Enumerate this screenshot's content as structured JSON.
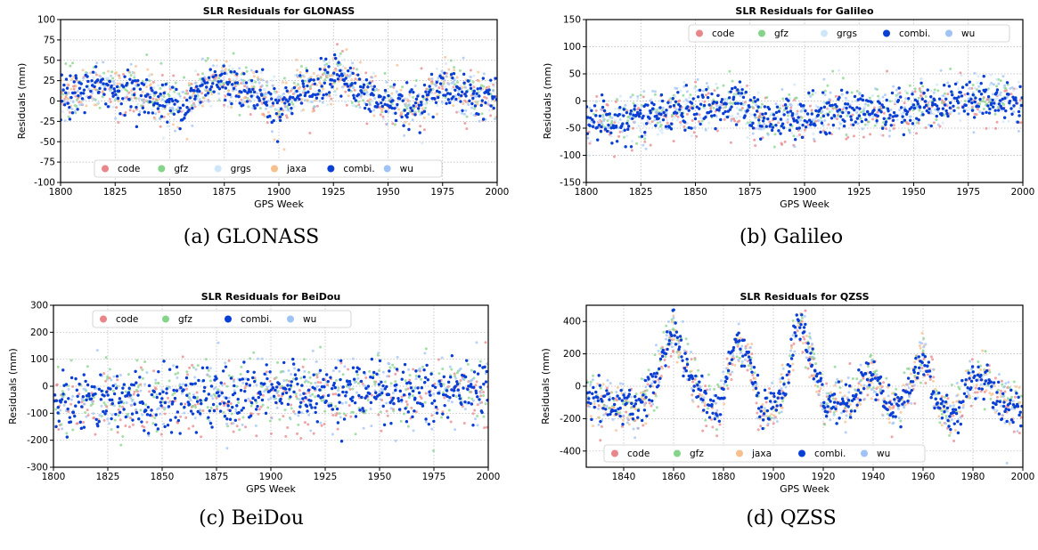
{
  "x_label": "GPS Week",
  "y_label": "Residuals (mm)",
  "colors": {
    "code": "#e8868a",
    "gfz": "#86d48b",
    "grgs": "#cfe6fa",
    "jaxa": "#f7bf8e",
    "combi.": "#0a3fd6",
    "wu": "#9fc3f5"
  },
  "chart_data": [
    {
      "type": "scatter",
      "title": "SLR Residuals for GLONASS",
      "caption": "(a) GLONASS",
      "xlim": [
        1800,
        2000
      ],
      "ylim": [
        -100,
        100
      ],
      "xticks": [
        1800,
        1825,
        1850,
        1875,
        1900,
        1925,
        1950,
        1975,
        2000
      ],
      "yticks": [
        -100,
        -75,
        -50,
        -25,
        0,
        25,
        50,
        75,
        100
      ],
      "legend_location": "bottom",
      "grid": true,
      "series": [
        {
          "name": "code"
        },
        {
          "name": "gfz"
        },
        {
          "name": "grgs"
        },
        {
          "name": "jaxa"
        },
        {
          "name": "combi."
        },
        {
          "name": "wu"
        }
      ],
      "trend": [
        [
          1800,
          0
        ],
        [
          1812,
          18
        ],
        [
          1825,
          15
        ],
        [
          1840,
          5
        ],
        [
          1850,
          -5
        ],
        [
          1860,
          0
        ],
        [
          1870,
          25
        ],
        [
          1880,
          20
        ],
        [
          1890,
          10
        ],
        [
          1900,
          -10
        ],
        [
          1910,
          15
        ],
        [
          1920,
          20
        ],
        [
          1928,
          35
        ],
        [
          1935,
          15
        ],
        [
          1945,
          0
        ],
        [
          1960,
          -10
        ],
        [
          1965,
          -5
        ],
        [
          1975,
          20
        ],
        [
          1985,
          10
        ],
        [
          2000,
          5
        ]
      ],
      "spread": 12
    },
    {
      "type": "scatter",
      "title": "SLR Residuals for Galileo",
      "caption": "(b) Galileo",
      "xlim": [
        1800,
        2000
      ],
      "ylim": [
        -150,
        150
      ],
      "xticks": [
        1800,
        1825,
        1850,
        1875,
        1900,
        1925,
        1950,
        1975,
        2000
      ],
      "yticks": [
        -150,
        -100,
        -50,
        0,
        50,
        100,
        150
      ],
      "legend_location": "top",
      "grid": true,
      "series": [
        {
          "name": "code"
        },
        {
          "name": "gfz"
        },
        {
          "name": "grgs"
        },
        {
          "name": "combi."
        },
        {
          "name": "wu"
        }
      ],
      "trend": [
        [
          1800,
          -30
        ],
        [
          1820,
          -35
        ],
        [
          1840,
          -20
        ],
        [
          1860,
          -10
        ],
        [
          1870,
          -5
        ],
        [
          1880,
          -35
        ],
        [
          1890,
          -30
        ],
        [
          1900,
          -30
        ],
        [
          1920,
          -15
        ],
        [
          1940,
          -20
        ],
        [
          1960,
          -5
        ],
        [
          1970,
          5
        ],
        [
          1985,
          0
        ],
        [
          2000,
          0
        ]
      ],
      "spread": 18
    },
    {
      "type": "scatter",
      "title": "SLR Residuals for BeiDou",
      "caption": "(c) BeiDou",
      "xlim": [
        1800,
        2000
      ],
      "ylim": [
        -300,
        300
      ],
      "xticks": [
        1800,
        1825,
        1850,
        1875,
        1900,
        1925,
        1950,
        1975,
        2000
      ],
      "yticks": [
        -300,
        -200,
        -100,
        0,
        100,
        200,
        300
      ],
      "legend_location": "top",
      "grid": true,
      "series": [
        {
          "name": "code"
        },
        {
          "name": "gfz"
        },
        {
          "name": "combi."
        },
        {
          "name": "wu"
        }
      ],
      "trend": [
        [
          1800,
          -30
        ],
        [
          1820,
          -40
        ],
        [
          1840,
          -60
        ],
        [
          1860,
          -30
        ],
        [
          1880,
          -50
        ],
        [
          1900,
          -20
        ],
        [
          1920,
          -40
        ],
        [
          1940,
          -30
        ],
        [
          1960,
          -10
        ],
        [
          1980,
          -20
        ],
        [
          2000,
          -10
        ]
      ],
      "spread": 55
    },
    {
      "type": "scatter",
      "title": "SLR Residuals for QZSS",
      "caption": "(d) QZSS",
      "xlim": [
        1825,
        2000
      ],
      "ylim": [
        -500,
        500
      ],
      "xticks": [
        1840,
        1860,
        1880,
        1900,
        1920,
        1940,
        1960,
        1980,
        2000
      ],
      "yticks": [
        -400,
        -200,
        0,
        200,
        400
      ],
      "legend_location": "bottom",
      "grid": true,
      "series": [
        {
          "name": "code"
        },
        {
          "name": "gfz"
        },
        {
          "name": "jaxa"
        },
        {
          "name": "combi."
        },
        {
          "name": "wu"
        }
      ],
      "trend": [
        [
          1825,
          -50
        ],
        [
          1835,
          -100
        ],
        [
          1845,
          -150
        ],
        [
          1852,
          0
        ],
        [
          1860,
          350
        ],
        [
          1866,
          100
        ],
        [
          1872,
          -100
        ],
        [
          1878,
          -150
        ],
        [
          1885,
          250
        ],
        [
          1890,
          200
        ],
        [
          1895,
          -150
        ],
        [
          1900,
          -150
        ],
        [
          1905,
          0
        ],
        [
          1910,
          400
        ],
        [
          1915,
          200
        ],
        [
          1920,
          -100
        ],
        [
          1930,
          -100
        ],
        [
          1940,
          100
        ],
        [
          1947,
          -150
        ],
        [
          1952,
          -100
        ],
        [
          1960,
          200
        ],
        [
          1966,
          -100
        ],
        [
          1972,
          -200
        ],
        [
          1980,
          50
        ],
        [
          1985,
          50
        ],
        [
          1990,
          -100
        ],
        [
          2000,
          -150
        ]
      ],
      "spread": 60
    }
  ]
}
